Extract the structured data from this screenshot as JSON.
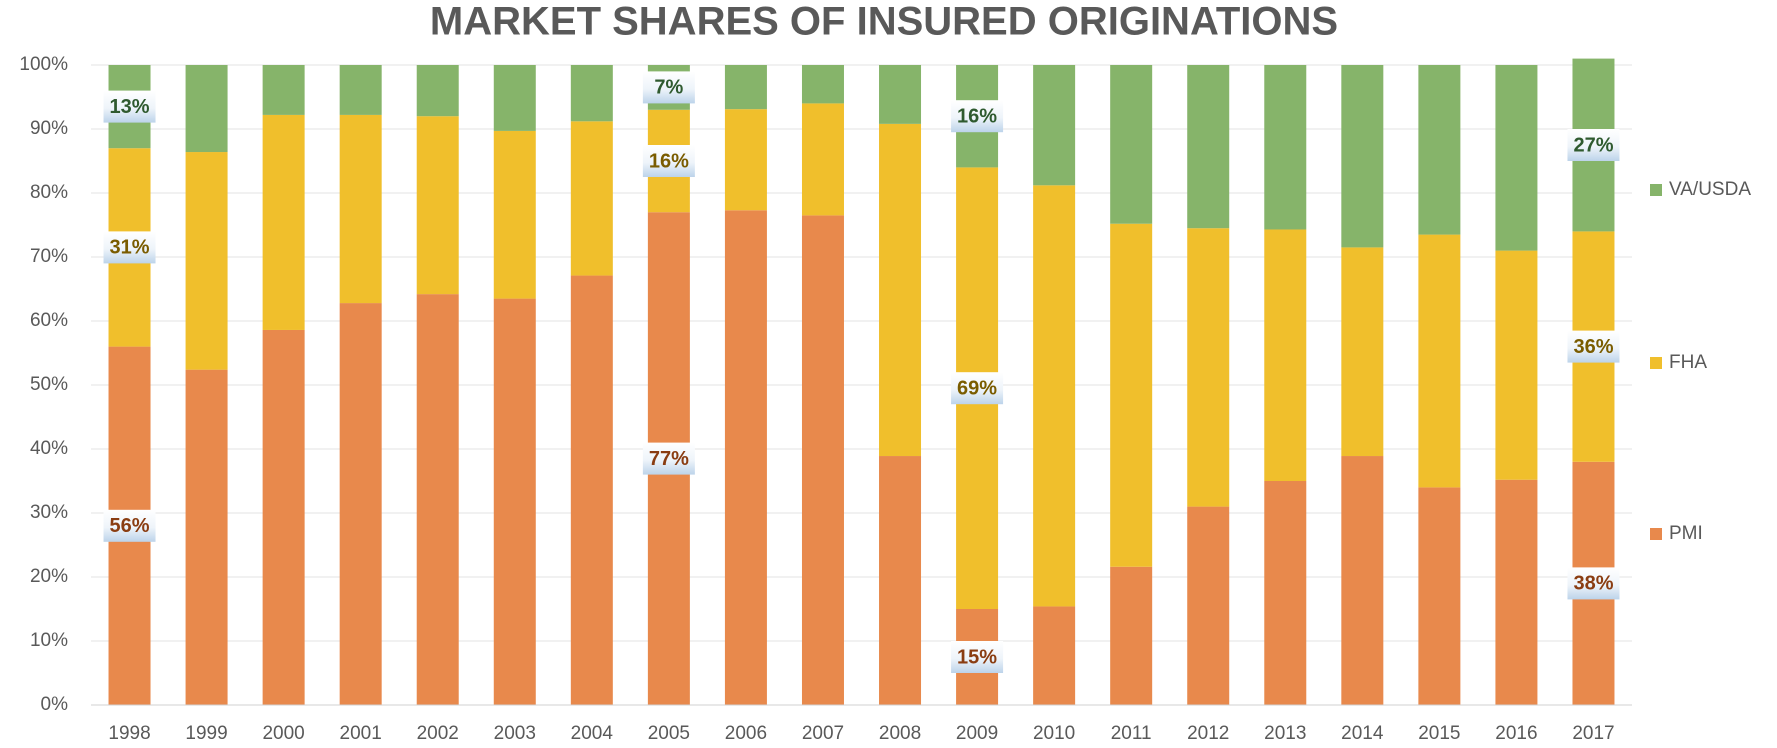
{
  "chart_data": {
    "type": "stacked_bar",
    "title": "MARKET SHARES OF INSURED ORIGINATIONS",
    "categories": [
      "1998",
      "1999",
      "2000",
      "2001",
      "2002",
      "2003",
      "2004",
      "2005",
      "2006",
      "2007",
      "2008",
      "2009",
      "2010",
      "2011",
      "2012",
      "2013",
      "2014",
      "2015",
      "2016",
      "2017"
    ],
    "series": [
      {
        "name": "PMI",
        "color": "#e8894c",
        "label_color": "#8a3d12",
        "values": [
          56,
          52.4,
          58.6,
          62.8,
          64.2,
          63.5,
          67.1,
          77,
          77.3,
          76.5,
          38.9,
          15,
          15.4,
          21.6,
          31,
          35,
          38.9,
          34,
          35.2,
          38
        ],
        "value_labels": [
          "56%",
          null,
          null,
          null,
          null,
          null,
          null,
          "77%",
          null,
          null,
          null,
          "15%",
          null,
          null,
          null,
          null,
          null,
          null,
          null,
          "38%"
        ]
      },
      {
        "name": "FHA",
        "color": "#f0bf2c",
        "label_color": "#7a5c00",
        "values": [
          31,
          34,
          33.6,
          29.4,
          27.8,
          26.2,
          24.1,
          16,
          15.8,
          17.5,
          51.9,
          69,
          65.8,
          53.6,
          43.5,
          39.3,
          32.6,
          39.5,
          35.8,
          36
        ],
        "value_labels": [
          "31%",
          null,
          null,
          null,
          null,
          null,
          null,
          "16%",
          null,
          null,
          null,
          "69%",
          null,
          null,
          null,
          null,
          null,
          null,
          null,
          "36%"
        ]
      },
      {
        "name": "VA/USDA",
        "color": "#86b46a",
        "label_color": "#2f5a2f",
        "values": [
          13,
          13.6,
          7.8,
          7.8,
          8,
          10.3,
          8.8,
          7,
          6.9,
          6,
          9.2,
          16,
          18.8,
          24.8,
          25.5,
          25.7,
          28.5,
          26.5,
          29,
          27
        ],
        "value_labels": [
          "13%",
          null,
          null,
          null,
          null,
          null,
          null,
          "7%",
          null,
          null,
          null,
          "16%",
          null,
          null,
          null,
          null,
          null,
          null,
          null,
          "27%"
        ]
      }
    ],
    "ylim": [
      0,
      100
    ],
    "yticks": [
      {
        "value": 0,
        "label": "0%"
      },
      {
        "value": 10,
        "label": "10%"
      },
      {
        "value": 20,
        "label": "20%"
      },
      {
        "value": 30,
        "label": "30%"
      },
      {
        "value": 40,
        "label": "40%"
      },
      {
        "value": 50,
        "label": "50%"
      },
      {
        "value": 60,
        "label": "60%"
      },
      {
        "value": 70,
        "label": "70%"
      },
      {
        "value": 80,
        "label": "80%"
      },
      {
        "value": 90,
        "label": "90%"
      },
      {
        "value": 100,
        "label": "100%"
      }
    ],
    "grid": true,
    "legend": "right"
  }
}
